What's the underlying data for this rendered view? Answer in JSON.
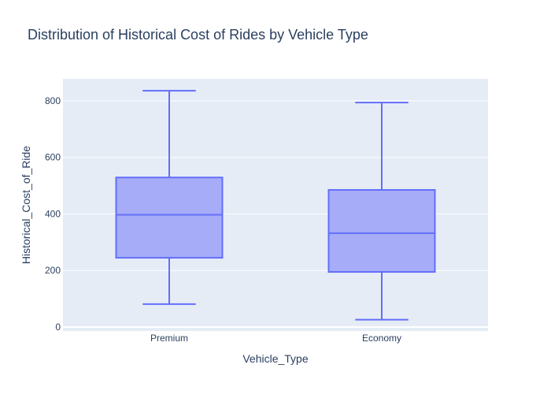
{
  "chart_data": {
    "type": "box",
    "title": "Distribution of Historical Cost of Rides by Vehicle Type",
    "xlabel": "Vehicle_Type",
    "ylabel": "Historical_Cost_of_Ride",
    "categories": [
      "Premium",
      "Economy"
    ],
    "boxes": [
      {
        "category": "Premium",
        "min": 81,
        "q1": 245,
        "median": 397,
        "q3": 529,
        "max": 836
      },
      {
        "category": "Economy",
        "min": 26,
        "q1": 195,
        "median": 332,
        "q3": 485,
        "max": 794
      }
    ],
    "ylim": [
      -14,
      878
    ],
    "yticks": [
      0,
      200,
      400,
      600,
      800
    ],
    "grid": true,
    "colors": {
      "plot_bg": "#e5ecf6",
      "grid": "#ffffff",
      "box_line": "#636efa",
      "box_fill": "#a3a9f8",
      "text": "#2a3f5f"
    }
  }
}
